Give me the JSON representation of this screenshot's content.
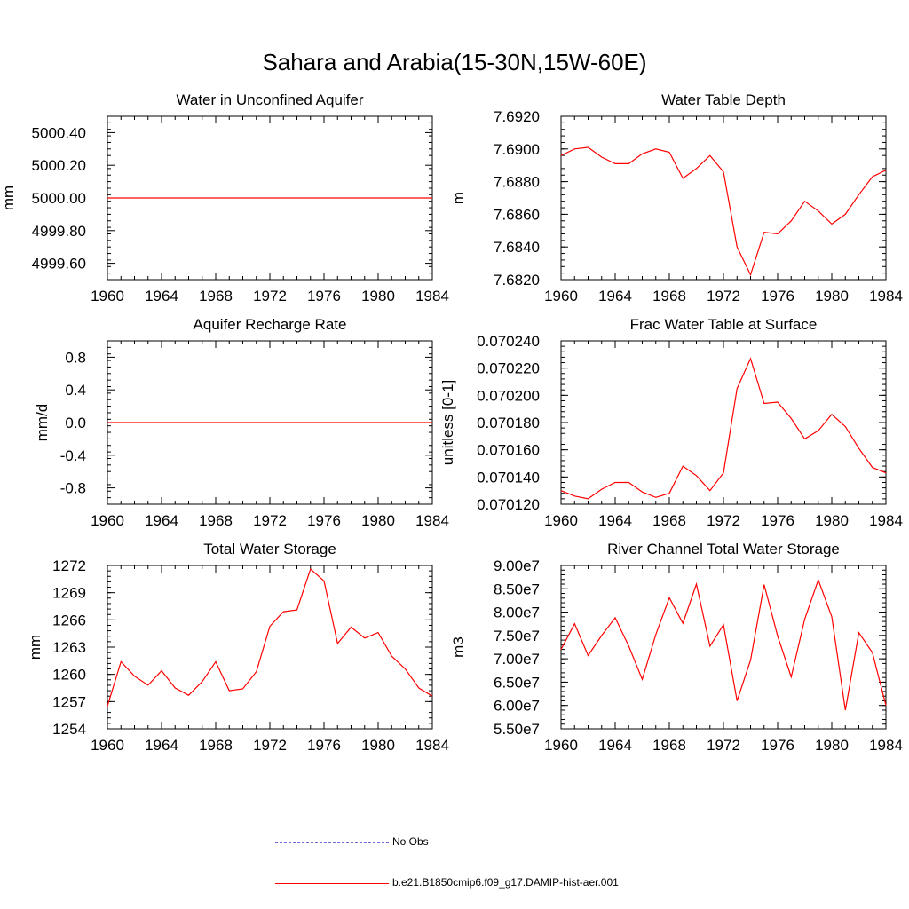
{
  "figure": {
    "title": "Sahara and Arabia(15-30N,15W-60E)"
  },
  "colors": {
    "model": "#ff0000",
    "obs": "#6b6bd6",
    "axis": "#000000"
  },
  "legend": {
    "items": [
      {
        "label": "No Obs",
        "style": "dashed",
        "color": "#6b6bd6"
      },
      {
        "label": "b.e21.B1850cmip6.f09_g17.DAMIP-hist-aer.001",
        "style": "solid",
        "color": "#ff0000"
      }
    ]
  },
  "chart_data": [
    {
      "type": "line",
      "title": "Water in Unconfined Aquifer",
      "ylabel": "mm",
      "xlim": [
        1960,
        1984
      ],
      "ylim": [
        4999.5,
        5000.5
      ],
      "xticks": [
        1960,
        1964,
        1968,
        1972,
        1976,
        1980,
        1984
      ],
      "yticks": [
        4999.6,
        4999.8,
        5000.0,
        5000.2,
        5000.4
      ],
      "ytick_labels": [
        "4999.60",
        "4999.80",
        "5000.00",
        "5000.20",
        "5000.40"
      ],
      "x": [
        1960,
        1961,
        1962,
        1963,
        1964,
        1965,
        1966,
        1967,
        1968,
        1969,
        1970,
        1971,
        1972,
        1973,
        1974,
        1975,
        1976,
        1977,
        1978,
        1979,
        1980,
        1981,
        1982,
        1983,
        1984
      ],
      "series": [
        {
          "values": [
            5000,
            5000,
            5000,
            5000,
            5000,
            5000,
            5000,
            5000,
            5000,
            5000,
            5000,
            5000,
            5000,
            5000,
            5000,
            5000,
            5000,
            5000,
            5000,
            5000,
            5000,
            5000,
            5000,
            5000,
            5000
          ]
        }
      ]
    },
    {
      "type": "line",
      "title": "Water Table Depth",
      "ylabel": "m",
      "xlim": [
        1960,
        1984
      ],
      "ylim": [
        7.682,
        7.692
      ],
      "xticks": [
        1960,
        1964,
        1968,
        1972,
        1976,
        1980,
        1984
      ],
      "yticks": [
        7.682,
        7.684,
        7.686,
        7.688,
        7.69,
        7.692
      ],
      "ytick_labels": [
        "7.6820",
        "7.6840",
        "7.6860",
        "7.6880",
        "7.6900",
        "7.6920"
      ],
      "x": [
        1960,
        1961,
        1962,
        1963,
        1964,
        1965,
        1966,
        1967,
        1968,
        1969,
        1970,
        1971,
        1972,
        1973,
        1974,
        1975,
        1976,
        1977,
        1978,
        1979,
        1980,
        1981,
        1982,
        1983,
        1984
      ],
      "series": [
        {
          "values": [
            7.6896,
            7.69,
            7.6901,
            7.6895,
            7.6891,
            7.6891,
            7.6897,
            7.69,
            7.6898,
            7.6882,
            7.6888,
            7.6896,
            7.6886,
            7.684,
            7.6823,
            7.6849,
            7.6848,
            7.6856,
            7.6868,
            7.6862,
            7.6854,
            7.686,
            7.6872,
            7.6883,
            7.6887
          ]
        }
      ]
    },
    {
      "type": "line",
      "title": "Aquifer Recharge Rate",
      "ylabel": "mm/d",
      "xlim": [
        1960,
        1984
      ],
      "ylim": [
        -1.0,
        1.0
      ],
      "xticks": [
        1960,
        1964,
        1968,
        1972,
        1976,
        1980,
        1984
      ],
      "yticks": [
        -0.8,
        -0.4,
        0.0,
        0.4,
        0.8
      ],
      "ytick_labels": [
        "-0.8",
        "-0.4",
        "0.0",
        "0.4",
        "0.8"
      ],
      "x": [
        1960,
        1961,
        1962,
        1963,
        1964,
        1965,
        1966,
        1967,
        1968,
        1969,
        1970,
        1971,
        1972,
        1973,
        1974,
        1975,
        1976,
        1977,
        1978,
        1979,
        1980,
        1981,
        1982,
        1983,
        1984
      ],
      "series": [
        {
          "values": [
            0,
            0,
            0,
            0,
            0,
            0,
            0,
            0,
            0,
            0,
            0,
            0,
            0,
            0,
            0,
            0,
            0,
            0,
            0,
            0,
            0,
            0,
            0,
            0,
            0
          ]
        }
      ]
    },
    {
      "type": "line",
      "title": "Frac Water Table at Surface",
      "ylabel": "unitless [0-1]",
      "xlim": [
        1960,
        1984
      ],
      "ylim": [
        0.07012,
        0.07024
      ],
      "xticks": [
        1960,
        1964,
        1968,
        1972,
        1976,
        1980,
        1984
      ],
      "yticks": [
        0.07012,
        0.07014,
        0.07016,
        0.07018,
        0.0702,
        0.07022,
        0.07024
      ],
      "ytick_labels": [
        "0.070120",
        "0.070140",
        "0.070160",
        "0.070180",
        "0.070200",
        "0.070220",
        "0.070240"
      ],
      "x": [
        1960,
        1961,
        1962,
        1963,
        1964,
        1965,
        1966,
        1967,
        1968,
        1969,
        1970,
        1971,
        1972,
        1973,
        1974,
        1975,
        1976,
        1977,
        1978,
        1979,
        1980,
        1981,
        1982,
        1983,
        1984
      ],
      "series": [
        {
          "values": [
            0.07013,
            0.070126,
            0.070124,
            0.070131,
            0.070136,
            0.070136,
            0.070129,
            0.070125,
            0.070128,
            0.070148,
            0.070141,
            0.07013,
            0.070143,
            0.070205,
            0.070227,
            0.070194,
            0.070195,
            0.070183,
            0.070168,
            0.070174,
            0.070186,
            0.070177,
            0.070161,
            0.070147,
            0.070143
          ]
        }
      ]
    },
    {
      "type": "line",
      "title": "Total Water Storage",
      "ylabel": "mm",
      "xlim": [
        1960,
        1984
      ],
      "ylim": [
        1254,
        1272
      ],
      "xticks": [
        1960,
        1964,
        1968,
        1972,
        1976,
        1980,
        1984
      ],
      "yticks": [
        1254,
        1257,
        1260,
        1263,
        1266,
        1269,
        1272
      ],
      "ytick_labels": [
        "1254",
        "1257",
        "1260",
        "1263",
        "1266",
        "1269",
        "1272"
      ],
      "x": [
        1960,
        1961,
        1962,
        1963,
        1964,
        1965,
        1966,
        1967,
        1968,
        1969,
        1970,
        1971,
        1972,
        1973,
        1974,
        1975,
        1976,
        1977,
        1978,
        1979,
        1980,
        1981,
        1982,
        1983,
        1984
      ],
      "series": [
        {
          "values": [
            1256.5,
            1261.4,
            1259.8,
            1258.8,
            1260.4,
            1258.5,
            1257.7,
            1259.2,
            1261.4,
            1258.2,
            1258.4,
            1260.3,
            1265.3,
            1266.9,
            1267.1,
            1271.6,
            1270.3,
            1263.4,
            1265.2,
            1264.0,
            1264.6,
            1262.0,
            1260.6,
            1258.5,
            1257.6
          ]
        }
      ]
    },
    {
      "type": "line",
      "title": "River Channel Total Water Storage",
      "ylabel": "m3",
      "xlim": [
        1960,
        1984
      ],
      "ylim": [
        55000000,
        90000000
      ],
      "xticks": [
        1960,
        1964,
        1968,
        1972,
        1976,
        1980,
        1984
      ],
      "yticks": [
        55000000,
        60000000,
        65000000,
        70000000,
        75000000,
        80000000,
        85000000,
        90000000
      ],
      "ytick_labels": [
        "5.50e7",
        "6.00e7",
        "6.50e7",
        "7.00e7",
        "7.50e7",
        "8.00e7",
        "8.50e7",
        "9.00e7"
      ],
      "x": [
        1960,
        1961,
        1962,
        1963,
        1964,
        1965,
        1966,
        1967,
        1968,
        1969,
        1970,
        1971,
        1972,
        1973,
        1974,
        1975,
        1976,
        1977,
        1978,
        1979,
        1980,
        1981,
        1982,
        1983,
        1984
      ],
      "series": [
        {
          "values": [
            72000000,
            77500000,
            70700000,
            75000000,
            78800000,
            72700000,
            65600000,
            75200000,
            83100000,
            77600000,
            86000000,
            72700000,
            77300000,
            61000000,
            69700000,
            85900000,
            74900000,
            66100000,
            78500000,
            86900000,
            79000000,
            59000000,
            75600000,
            71300000,
            60000000
          ]
        }
      ]
    }
  ]
}
